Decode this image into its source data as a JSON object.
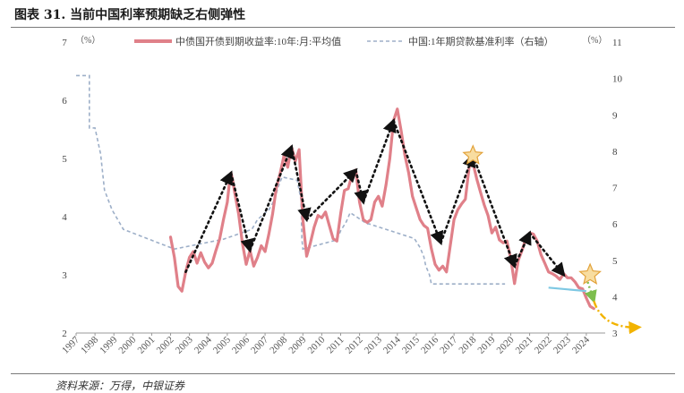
{
  "header": {
    "title": "图表 31. 当前中国利率预期缺乏右侧弹性"
  },
  "footer": {
    "source": "资料来源：万得，中银证券"
  },
  "chart_data": {
    "type": "line",
    "left_unit": "（%）",
    "right_unit": "（%）",
    "y_left_ticks": [
      "7",
      "6",
      "5",
      "4",
      "3",
      "2"
    ],
    "y_right_ticks": [
      "11",
      "10",
      "9",
      "8",
      "7",
      "6",
      "5",
      "4",
      "3"
    ],
    "ylim_left": [
      2,
      7
    ],
    "ylim_right": [
      3,
      11
    ],
    "xlim": [
      1997,
      2025
    ],
    "x_tick_labels": [
      "1997",
      "1998",
      "1999",
      "2000",
      "2001",
      "2002",
      "2003",
      "2004",
      "2005",
      "2006",
      "2007",
      "2008",
      "2009",
      "2010",
      "2011",
      "2012",
      "2013",
      "2014",
      "2015",
      "2016",
      "2017",
      "2018",
      "2019",
      "2020",
      "2021",
      "2022",
      "2023",
      "2024"
    ],
    "legend_placement": "top",
    "grid": false,
    "series": [
      {
        "name": "中债国开债到期收益率:10年:月:平均值",
        "axis": "left",
        "color": "#E08089",
        "style": "solid",
        "points": [
          [
            2002.0,
            3.65
          ],
          [
            2002.2,
            3.3
          ],
          [
            2002.4,
            2.8
          ],
          [
            2002.6,
            2.72
          ],
          [
            2002.8,
            3.05
          ],
          [
            2003.0,
            3.3
          ],
          [
            2003.2,
            3.4
          ],
          [
            2003.4,
            3.2
          ],
          [
            2003.6,
            3.38
          ],
          [
            2003.8,
            3.22
          ],
          [
            2004.0,
            3.12
          ],
          [
            2004.2,
            3.2
          ],
          [
            2004.4,
            3.42
          ],
          [
            2004.6,
            3.62
          ],
          [
            2004.8,
            3.95
          ],
          [
            2005.0,
            4.25
          ],
          [
            2005.1,
            4.55
          ],
          [
            2005.2,
            4.75
          ],
          [
            2005.3,
            4.6
          ],
          [
            2005.4,
            4.4
          ],
          [
            2005.6,
            4.05
          ],
          [
            2005.8,
            3.55
          ],
          [
            2006.0,
            3.18
          ],
          [
            2006.2,
            3.42
          ],
          [
            2006.4,
            3.15
          ],
          [
            2006.6,
            3.3
          ],
          [
            2006.8,
            3.5
          ],
          [
            2007.0,
            3.4
          ],
          [
            2007.2,
            3.7
          ],
          [
            2007.4,
            4.05
          ],
          [
            2007.6,
            4.5
          ],
          [
            2007.8,
            4.75
          ],
          [
            2008.0,
            5.05
          ],
          [
            2008.2,
            4.85
          ],
          [
            2008.4,
            5.2
          ],
          [
            2008.6,
            4.95
          ],
          [
            2008.8,
            5.15
          ],
          [
            2009.0,
            3.95
          ],
          [
            2009.2,
            3.32
          ],
          [
            2009.4,
            3.55
          ],
          [
            2009.6,
            3.82
          ],
          [
            2009.8,
            4.02
          ],
          [
            2010.0,
            3.98
          ],
          [
            2010.2,
            4.08
          ],
          [
            2010.4,
            3.85
          ],
          [
            2010.6,
            3.62
          ],
          [
            2010.8,
            3.58
          ],
          [
            2011.0,
            4.05
          ],
          [
            2011.2,
            4.45
          ],
          [
            2011.4,
            4.48
          ],
          [
            2011.6,
            4.72
          ],
          [
            2011.8,
            4.8
          ],
          [
            2012.0,
            4.25
          ],
          [
            2012.2,
            3.95
          ],
          [
            2012.4,
            3.9
          ],
          [
            2012.6,
            3.95
          ],
          [
            2012.8,
            4.25
          ],
          [
            2013.0,
            4.35
          ],
          [
            2013.2,
            4.18
          ],
          [
            2013.4,
            4.55
          ],
          [
            2013.6,
            5.0
          ],
          [
            2013.8,
            5.65
          ],
          [
            2014.0,
            5.85
          ],
          [
            2014.2,
            5.48
          ],
          [
            2014.4,
            5.05
          ],
          [
            2014.6,
            4.75
          ],
          [
            2014.8,
            4.35
          ],
          [
            2015.0,
            4.15
          ],
          [
            2015.2,
            3.95
          ],
          [
            2015.4,
            3.85
          ],
          [
            2015.6,
            3.8
          ],
          [
            2015.8,
            3.45
          ],
          [
            2016.0,
            3.18
          ],
          [
            2016.2,
            3.08
          ],
          [
            2016.4,
            3.15
          ],
          [
            2016.6,
            3.05
          ],
          [
            2016.8,
            3.5
          ],
          [
            2017.0,
            3.95
          ],
          [
            2017.2,
            4.12
          ],
          [
            2017.4,
            4.22
          ],
          [
            2017.6,
            4.3
          ],
          [
            2017.8,
            4.85
          ],
          [
            2018.0,
            4.92
          ],
          [
            2018.2,
            4.65
          ],
          [
            2018.4,
            4.42
          ],
          [
            2018.6,
            4.2
          ],
          [
            2018.8,
            4.02
          ],
          [
            2019.0,
            3.72
          ],
          [
            2019.2,
            3.82
          ],
          [
            2019.4,
            3.6
          ],
          [
            2019.6,
            3.55
          ],
          [
            2019.8,
            3.58
          ],
          [
            2020.0,
            3.28
          ],
          [
            2020.2,
            2.85
          ],
          [
            2020.4,
            3.25
          ],
          [
            2020.6,
            3.42
          ],
          [
            2020.8,
            3.62
          ],
          [
            2021.0,
            3.72
          ],
          [
            2021.2,
            3.7
          ],
          [
            2021.4,
            3.58
          ],
          [
            2021.6,
            3.35
          ],
          [
            2021.8,
            3.2
          ],
          [
            2022.0,
            3.05
          ],
          [
            2022.2,
            3.02
          ],
          [
            2022.4,
            2.98
          ],
          [
            2022.6,
            2.92
          ],
          [
            2022.8,
            3.02
          ],
          [
            2023.0,
            2.95
          ],
          [
            2023.2,
            2.95
          ],
          [
            2023.4,
            2.88
          ],
          [
            2023.6,
            2.78
          ],
          [
            2023.8,
            2.76
          ],
          [
            2024.0,
            2.6
          ],
          [
            2024.2,
            2.46
          ],
          [
            2024.4,
            2.42
          ]
        ]
      },
      {
        "name": "中国:1年期贷款基准利率（右轴）",
        "axis": "right",
        "color": "#9DAFC8",
        "style": "dashed",
        "points": [
          [
            1997.0,
            10.08
          ],
          [
            1997.7,
            10.08
          ],
          [
            1997.7,
            8.64
          ],
          [
            1998.0,
            8.64
          ],
          [
            1998.3,
            7.92
          ],
          [
            1998.5,
            6.93
          ],
          [
            1998.9,
            6.39
          ],
          [
            1999.5,
            5.85
          ],
          [
            2002.2,
            5.31
          ],
          [
            2004.8,
            5.58
          ],
          [
            2006.3,
            5.85
          ],
          [
            2006.6,
            6.12
          ],
          [
            2007.2,
            6.39
          ],
          [
            2007.4,
            6.57
          ],
          [
            2007.6,
            6.84
          ],
          [
            2007.7,
            7.02
          ],
          [
            2007.9,
            7.29
          ],
          [
            2008.7,
            7.2
          ],
          [
            2008.8,
            6.93
          ],
          [
            2008.9,
            6.66
          ],
          [
            2008.95,
            5.58
          ],
          [
            2009.0,
            5.31
          ],
          [
            2010.8,
            5.56
          ],
          [
            2011.0,
            5.81
          ],
          [
            2011.3,
            6.06
          ],
          [
            2011.5,
            6.31
          ],
          [
            2012.4,
            6.0
          ],
          [
            2012.5,
            6.0
          ],
          [
            2014.9,
            5.6
          ],
          [
            2015.2,
            5.35
          ],
          [
            2015.4,
            5.1
          ],
          [
            2015.5,
            4.85
          ],
          [
            2015.7,
            4.6
          ],
          [
            2015.8,
            4.35
          ],
          [
            2019.7,
            4.35
          ]
        ]
      }
    ],
    "annotations": {
      "cycle_arrows": [
        [
          [
            2002.8,
            3.05
          ],
          [
            2005.2,
            4.75
          ]
        ],
        [
          [
            2005.2,
            4.75
          ],
          [
            2006.2,
            3.42
          ]
        ],
        [
          [
            2006.2,
            3.42
          ],
          [
            2008.4,
            5.2
          ]
        ],
        [
          [
            2008.4,
            5.2
          ],
          [
            2009.2,
            3.95
          ]
        ],
        [
          [
            2009.2,
            3.95
          ],
          [
            2011.8,
            4.8
          ]
        ],
        [
          [
            2011.8,
            4.8
          ],
          [
            2012.2,
            4.25
          ]
        ],
        [
          [
            2012.2,
            4.25
          ],
          [
            2013.8,
            5.65
          ]
        ],
        [
          [
            2013.8,
            5.65
          ],
          [
            2016.3,
            3.55
          ]
        ],
        [
          [
            2016.3,
            3.55
          ],
          [
            2018.0,
            5.05
          ]
        ],
        [
          [
            2018.0,
            5.05
          ],
          [
            2020.2,
            3.15
          ]
        ],
        [
          [
            2020.2,
            3.15
          ],
          [
            2021.0,
            3.72
          ]
        ],
        [
          [
            2021.0,
            3.72
          ],
          [
            2022.8,
            3.0
          ]
        ]
      ],
      "stars": [
        [
          2018.0,
          5.05
        ],
        [
          2024.2,
          3.0
        ]
      ],
      "flat_line": [
        [
          2022.0,
          2.78
        ],
        [
          2024.0,
          2.72
        ]
      ],
      "green_arrow": [
        [
          2024.0,
          2.95
        ],
        [
          2024.4,
          2.55
        ]
      ],
      "forecast_arrow": [
        [
          2024.4,
          2.55
        ],
        [
          2026.8,
          2.1
        ]
      ]
    }
  }
}
